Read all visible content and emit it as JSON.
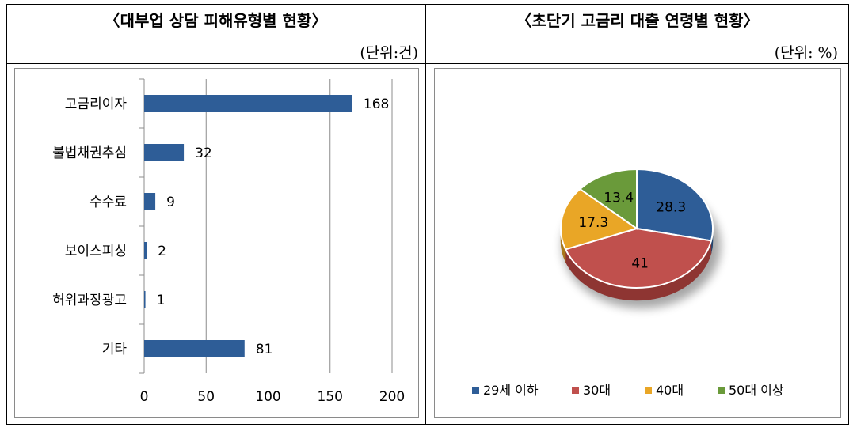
{
  "tables": [
    {
      "title": "〈대부업 상담 피해유형별 현황〉",
      "unit": "(단위:건)",
      "chart_data": {
        "type": "bar",
        "orientation": "horizontal",
        "categories": [
          "고금리이자",
          "불법채권추심",
          "수수료",
          "보이스피싱",
          "허위과장광고",
          "기타"
        ],
        "values": [
          168,
          32,
          9,
          2,
          1,
          81
        ],
        "xlim": [
          0,
          200
        ],
        "xticks": [
          "0",
          "50",
          "100",
          "150",
          "200"
        ],
        "grid": true,
        "bar_color": "#2E5D97"
      }
    },
    {
      "title": "〈초단기 고금리 대출 연령별 현황〉",
      "unit": "(단위: %)",
      "chart_data": {
        "type": "pie",
        "style": "3d",
        "labels": [
          "29세 이하",
          "30대",
          "40대",
          "50대 이상"
        ],
        "values": [
          28.3,
          41,
          17.3,
          13.4
        ],
        "value_labels": [
          "28.3",
          "41",
          "17.3",
          "13.4"
        ],
        "colors": [
          "#2E5D97",
          "#C0504D",
          "#E9A626",
          "#6A9A3A"
        ],
        "dark_colors": [
          "#1F4470",
          "#8E3532",
          "#A9781A",
          "#4A6D28"
        ],
        "legend": "bottom"
      }
    }
  ]
}
